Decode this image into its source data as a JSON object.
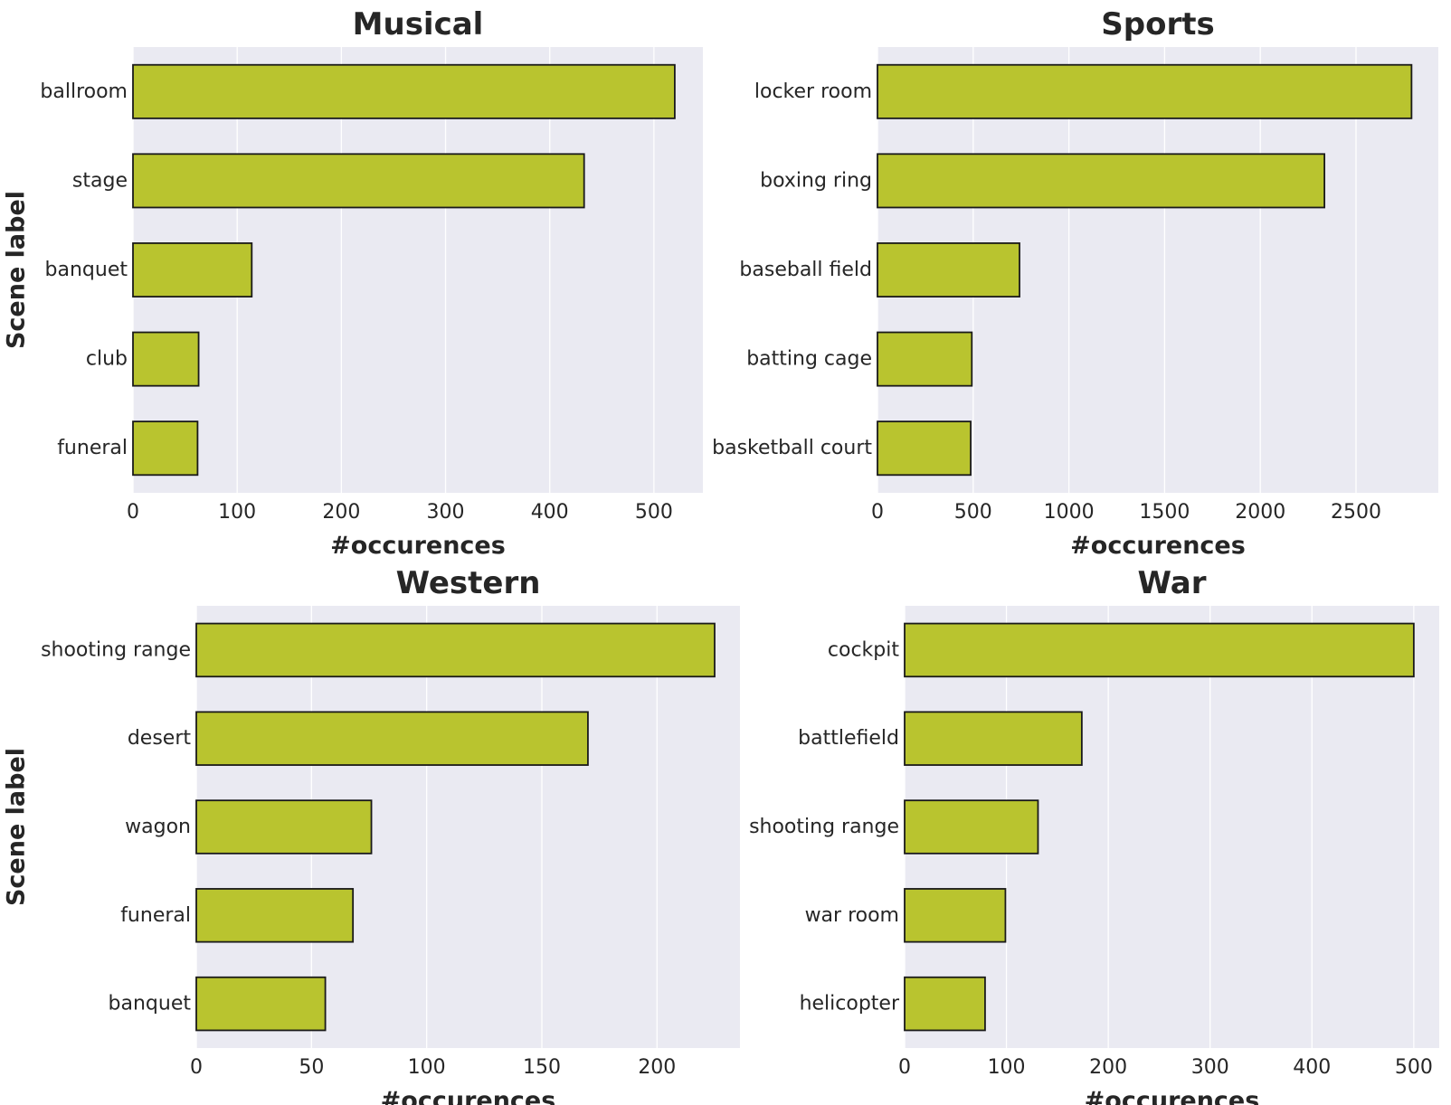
{
  "style": {
    "bar_color": "#b9c42f",
    "bar_edge": "#1a1a1a",
    "plot_bg": "#eaeaf2",
    "grid_color": "#ffffff"
  },
  "chart_data": [
    {
      "type": "bar",
      "orientation": "horizontal",
      "title": "Musical",
      "xlabel": "#occurences",
      "ylabel": "Scene label",
      "categories": [
        "ballroom",
        "stage",
        "banquet",
        "club",
        "funeral"
      ],
      "values": [
        520,
        433,
        114,
        63,
        62
      ],
      "xlim": [
        0,
        547
      ],
      "xticks": [
        0,
        100,
        200,
        300,
        400,
        500
      ]
    },
    {
      "type": "bar",
      "orientation": "horizontal",
      "title": "Sports",
      "xlabel": "#occurences",
      "ylabel": "",
      "categories": [
        "locker room",
        "boxing ring",
        "baseball field",
        "batting cage",
        "basketball court"
      ],
      "values": [
        2790,
        2335,
        742,
        493,
        487
      ],
      "xlim": [
        0,
        2930
      ],
      "xticks": [
        0,
        500,
        1000,
        1500,
        2000,
        2500
      ]
    },
    {
      "type": "bar",
      "orientation": "horizontal",
      "title": "Western",
      "xlabel": "#occurences",
      "ylabel": "Scene label",
      "categories": [
        "shooting range",
        "desert",
        "wagon",
        "funeral",
        "banquet"
      ],
      "values": [
        225,
        170,
        76,
        68,
        56
      ],
      "xlim": [
        0,
        236
      ],
      "xticks": [
        0,
        50,
        100,
        150,
        200
      ]
    },
    {
      "type": "bar",
      "orientation": "horizontal",
      "title": "War",
      "xlabel": "#occurences",
      "ylabel": "",
      "categories": [
        "cockpit",
        "battlefield",
        "shooting range",
        "war room",
        "helicopter"
      ],
      "values": [
        500,
        174,
        131,
        99,
        79
      ],
      "xlim": [
        0,
        525
      ],
      "xticks": [
        0,
        100,
        200,
        300,
        400,
        500
      ]
    }
  ]
}
